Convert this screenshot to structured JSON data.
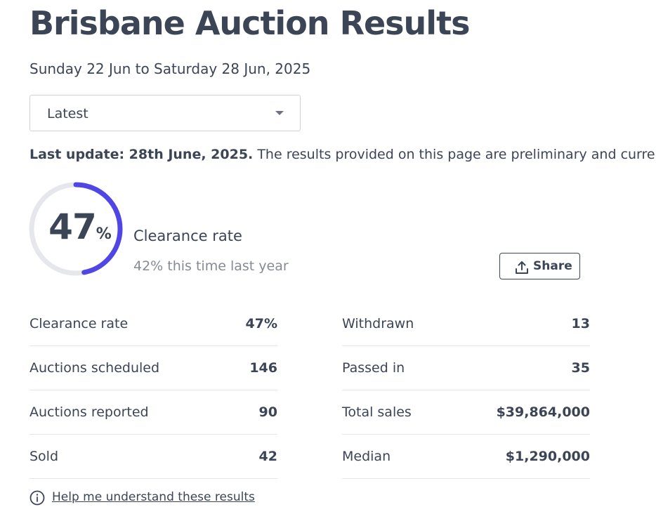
{
  "page": {
    "title": "Brisbane Auction Results",
    "date_range": "Sunday 22 Jun to Saturday 28 Jun, 2025"
  },
  "period_select": {
    "value": "Latest"
  },
  "update_notice": {
    "bold": "Last update: 28th June, 2025.",
    "text": " The results provided on this page are preliminary and current at th"
  },
  "clearance": {
    "value": "47",
    "unit": "%",
    "fraction": 0.47,
    "label": "Clearance rate",
    "last_year": "42% this time last year",
    "colors": {
      "ring_fill": "#4f46e5",
      "ring_track": "#e5e7ec"
    }
  },
  "share": {
    "label": "Share",
    "icon": "share-upload-icon"
  },
  "stats_left": [
    {
      "label": "Clearance rate",
      "value": "47%"
    },
    {
      "label": "Auctions scheduled",
      "value": "146"
    },
    {
      "label": "Auctions reported",
      "value": "90"
    },
    {
      "label": "Sold",
      "value": "42"
    }
  ],
  "stats_right": [
    {
      "label": "Withdrawn",
      "value": "13"
    },
    {
      "label": "Passed in",
      "value": "35"
    },
    {
      "label": "Total sales",
      "value": "$39,864,000"
    },
    {
      "label": "Median",
      "value": "$1,290,000"
    }
  ],
  "help": {
    "label": "Help me understand these results",
    "icon": "info-icon"
  }
}
